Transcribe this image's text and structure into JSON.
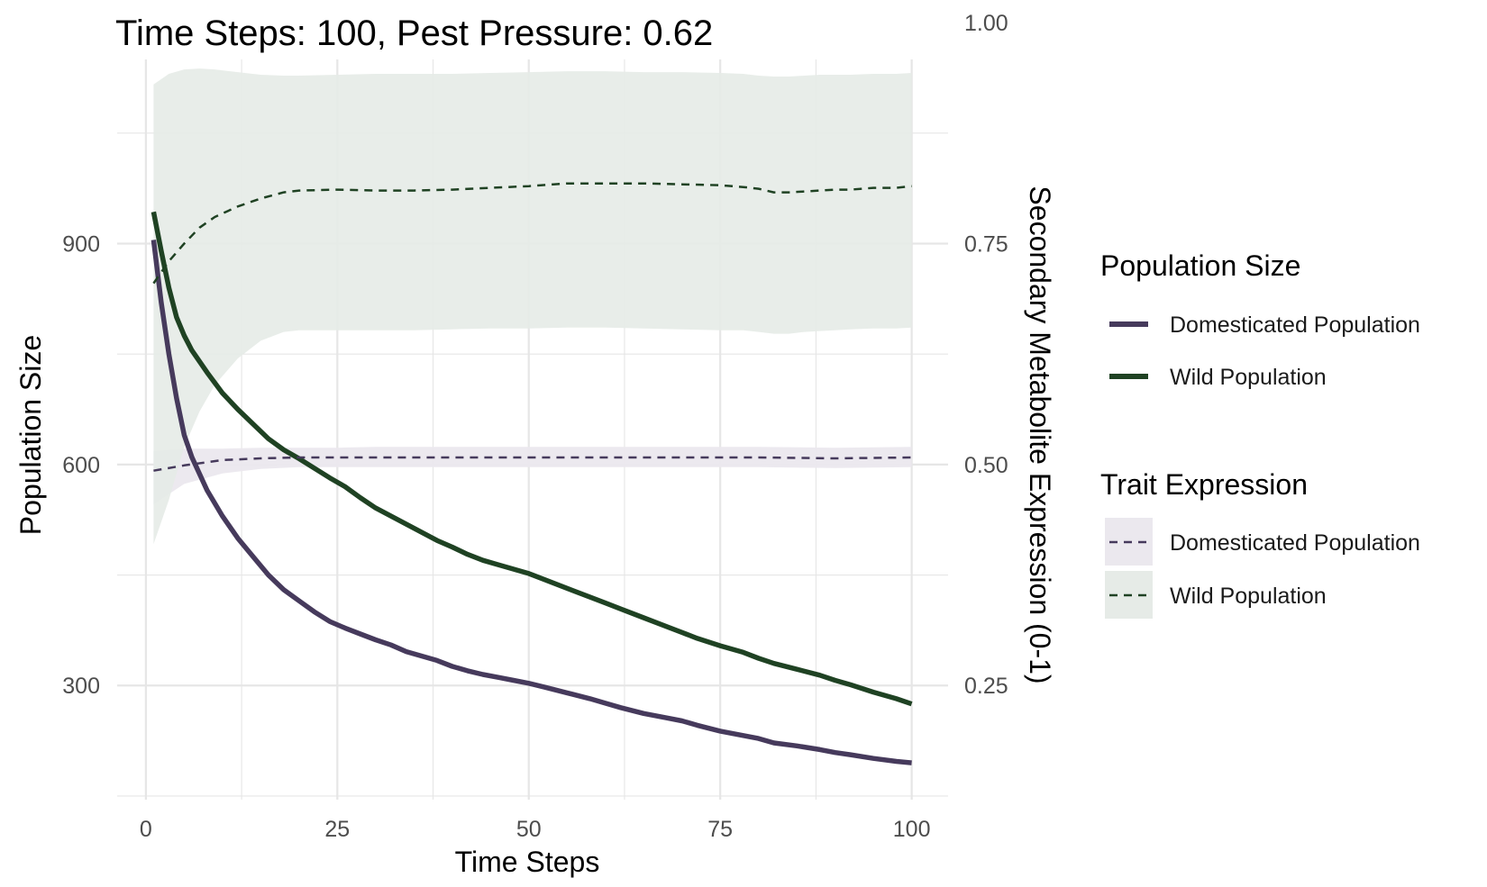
{
  "chart_data": {
    "type": "line",
    "title": "Time Steps: 100, Pest Pressure: 0.62",
    "xlabel": "Time Steps",
    "ylabel": "Population Size",
    "y2label": "Secondary Metabolite Expression (0-1)",
    "xlim": [
      -3.75,
      104.75
    ],
    "ylim": [
      145,
      1150
    ],
    "y2lim": [
      0.0,
      1.0
    ],
    "x_ticks": [
      "0",
      "25",
      "50",
      "75",
      "100"
    ],
    "y_ticks": [
      "300",
      "600",
      "900"
    ],
    "y2_ticks": [
      "0.25",
      "0.50",
      "0.75",
      "1.00"
    ],
    "grid": true,
    "legend_position": "right",
    "colors": {
      "domesticated": "#463a5c",
      "wild": "#1f4223",
      "domesticated_band": "#ebe8ee",
      "wild_band": "#e6ebe7",
      "grid": "#e6e6e6"
    },
    "legend": {
      "population_title": "Population Size",
      "population_items": [
        "Domesticated Population",
        "Wild Population"
      ],
      "trait_title": "Trait Expression",
      "trait_items": [
        "Domesticated Population",
        "Wild Population"
      ]
    },
    "series": [
      {
        "name": "Domesticated Population",
        "axis": "left",
        "style": "solid",
        "x": [
          1,
          2,
          3,
          4,
          5,
          6,
          8,
          10,
          12,
          14,
          16,
          18,
          20,
          22,
          24,
          26,
          28,
          30,
          32,
          34,
          36,
          38,
          40,
          42,
          44,
          46,
          48,
          50,
          52,
          55,
          58,
          60,
          62,
          65,
          68,
          70,
          72,
          75,
          78,
          80,
          82,
          85,
          88,
          90,
          92,
          95,
          98,
          100
        ],
        "values": [
          905,
          820,
          750,
          690,
          640,
          610,
          565,
          530,
          500,
          475,
          450,
          430,
          415,
          400,
          387,
          378,
          370,
          362,
          355,
          346,
          340,
          334,
          326,
          320,
          315,
          311,
          307,
          303,
          298,
          290,
          282,
          276,
          270,
          262,
          256,
          252,
          246,
          238,
          232,
          228,
          222,
          218,
          213,
          209,
          206,
          201,
          197,
          195
        ]
      },
      {
        "name": "Wild Population",
        "axis": "left",
        "style": "solid",
        "x": [
          1,
          2,
          3,
          4,
          5,
          6,
          8,
          10,
          12,
          14,
          16,
          18,
          20,
          22,
          24,
          26,
          28,
          30,
          32,
          34,
          36,
          38,
          40,
          42,
          44,
          46,
          48,
          50,
          52,
          55,
          58,
          60,
          62,
          65,
          68,
          70,
          72,
          75,
          78,
          80,
          82,
          85,
          88,
          90,
          92,
          95,
          98,
          100
        ],
        "values": [
          943,
          890,
          840,
          800,
          775,
          755,
          725,
          697,
          675,
          655,
          635,
          620,
          608,
          595,
          582,
          570,
          555,
          541,
          530,
          519,
          508,
          497,
          488,
          478,
          470,
          464,
          458,
          452,
          444,
          432,
          420,
          412,
          404,
          392,
          380,
          372,
          364,
          354,
          345,
          337,
          330,
          322,
          314,
          307,
          301,
          291,
          282,
          275
        ]
      },
      {
        "name": "Domesticated Population",
        "axis": "right",
        "style": "dashed",
        "x": [
          1,
          5,
          10,
          15,
          20,
          25,
          30,
          40,
          50,
          60,
          70,
          80,
          90,
          100
        ],
        "values": [
          0.493,
          0.499,
          0.505,
          0.507,
          0.508,
          0.508,
          0.508,
          0.508,
          0.508,
          0.508,
          0.508,
          0.508,
          0.507,
          0.508
        ],
        "band_lower": [
          0.455,
          0.478,
          0.49,
          0.495,
          0.497,
          0.497,
          0.497,
          0.497,
          0.497,
          0.497,
          0.497,
          0.497,
          0.496,
          0.497
        ],
        "band_upper": [
          0.515,
          0.518,
          0.518,
          0.519,
          0.519,
          0.519,
          0.52,
          0.52,
          0.52,
          0.52,
          0.52,
          0.52,
          0.519,
          0.52
        ]
      },
      {
        "name": "Wild Population",
        "axis": "right",
        "style": "dashed",
        "x": [
          1,
          3,
          5,
          7,
          9,
          12,
          15,
          18,
          20,
          25,
          30,
          35,
          40,
          45,
          50,
          55,
          60,
          65,
          70,
          75,
          78,
          80,
          82,
          84,
          86,
          88,
          90,
          92,
          95,
          98,
          100
        ],
        "values": [
          0.705,
          0.73,
          0.75,
          0.768,
          0.78,
          0.792,
          0.801,
          0.808,
          0.81,
          0.811,
          0.81,
          0.81,
          0.811,
          0.813,
          0.815,
          0.818,
          0.818,
          0.818,
          0.817,
          0.816,
          0.814,
          0.812,
          0.808,
          0.808,
          0.809,
          0.81,
          0.811,
          0.811,
          0.813,
          0.813,
          0.815
        ],
        "band_lower": [
          0.41,
          0.46,
          0.52,
          0.56,
          0.59,
          0.62,
          0.64,
          0.65,
          0.652,
          0.652,
          0.652,
          0.652,
          0.653,
          0.654,
          0.654,
          0.655,
          0.655,
          0.654,
          0.653,
          0.652,
          0.652,
          0.65,
          0.648,
          0.648,
          0.65,
          0.651,
          0.652,
          0.653,
          0.654,
          0.654,
          0.655
        ],
        "band_upper": [
          0.93,
          0.942,
          0.947,
          0.948,
          0.947,
          0.944,
          0.941,
          0.94,
          0.94,
          0.941,
          0.942,
          0.942,
          0.942,
          0.943,
          0.944,
          0.945,
          0.945,
          0.944,
          0.944,
          0.943,
          0.942,
          0.94,
          0.939,
          0.939,
          0.94,
          0.941,
          0.941,
          0.941,
          0.942,
          0.942,
          0.943
        ]
      }
    ]
  }
}
